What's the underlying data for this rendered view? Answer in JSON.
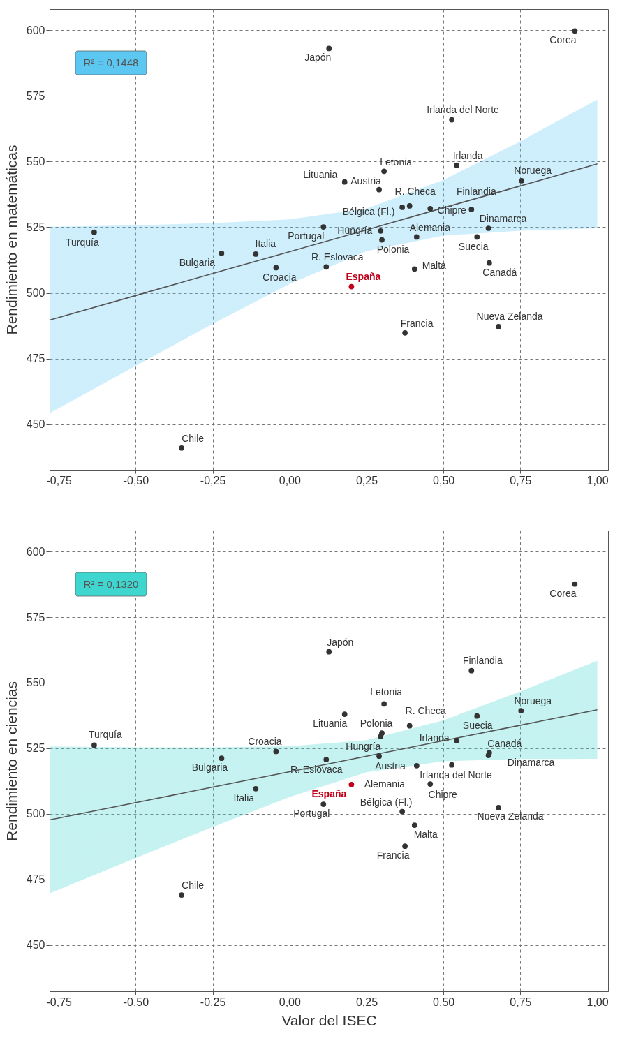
{
  "chart_data": [
    {
      "type": "scatter",
      "ylabel": "Rendimiento en matemáticas",
      "xlim": [
        -0.78,
        1.035
      ],
      "ylim": [
        432.7,
        608
      ],
      "xticks": [
        {
          "value": -0.75,
          "label": "-0,75"
        },
        {
          "value": -0.5,
          "label": "-0,50"
        },
        {
          "value": -0.25,
          "label": "-0,25"
        },
        {
          "value": 0,
          "label": "0,00"
        },
        {
          "value": 0.25,
          "label": "0,25"
        },
        {
          "value": 0.5,
          "label": "0,50"
        },
        {
          "value": 0.75,
          "label": "0,75"
        },
        {
          "value": 1,
          "label": "1,00"
        }
      ],
      "yticks": [
        450,
        475,
        500,
        525,
        550,
        575,
        600
      ],
      "grid": true,
      "series": [
        {
          "type": "line",
          "color": "#555555",
          "colors": [
            "#5cc8f2",
            "#5cc8f2",
            "#5cc8f2",
            "#5cc8f2",
            "#5cc8f2",
            "#5cc8f2",
            "#5cc8f2",
            "#5cc8f2"
          ],
          "x": [
            -0.78,
            -0.5,
            -0.25,
            0,
            0.25,
            0.5,
            0.75,
            1.0
          ],
          "values": [
            489.7,
            499.0,
            507.4,
            515.7,
            524.0,
            532.4,
            540.7,
            549.1
          ],
          "lower": [
            454.2,
            472.3,
            488.2,
            503.4,
            515.9,
            521.8,
            523.7,
            524.6
          ],
          "upper": [
            525.2,
            525.7,
            526.6,
            528.0,
            532.1,
            543.0,
            557.7,
            573.6
          ]
        },
        {
          "type": "scatter",
          "marker": "circle",
          "color": "#333333",
          "x": [
            0.927,
            0.128,
            0.527,
            0.543,
            0.754,
            0.307,
            0.179,
            0.291,
            0.39,
            0.366,
            0.457,
            0.591,
            0.646,
            -0.635,
            0.11,
            0.296,
            0.413,
            0.3,
            0.609,
            -0.221,
            -0.11,
            -0.044,
            0.119,
            0.406,
            0.649,
            0.201,
            0.375,
            0.679,
            -0.351
          ],
          "values": [
            599.7,
            593.0,
            565.9,
            548.6,
            542.7,
            546.3,
            542.2,
            539.3,
            533.1,
            532.6,
            532.1,
            531.8,
            524.6,
            523.1,
            525.1,
            523.6,
            521.3,
            520.2,
            521.3,
            515.1,
            514.8,
            509.6,
            509.9,
            509.1,
            511.4,
            502.4,
            484.8,
            487.2,
            441.0
          ],
          "colors": [
            "#333333",
            "#333333",
            "#333333",
            "#333333",
            "#333333",
            "#333333",
            "#333333",
            "#333333",
            "#333333",
            "#333333",
            "#333333",
            "#333333",
            "#333333",
            "#333333",
            "#333333",
            "#333333",
            "#333333",
            "#333333",
            "#333333",
            "#333333",
            "#333333",
            "#333333",
            "#333333",
            "#333333",
            "#333333",
            "#c0001a",
            "#333333",
            "#333333",
            "#333333"
          ]
        }
      ],
      "annotations": [
        "R² = 0,1448",
        {
          "text": "Corea",
          "x": 0.927,
          "y": 599.7
        },
        {
          "text": "Japón",
          "x": 0.128,
          "y": 593.0
        },
        {
          "text": "Irlanda del Norte",
          "x": 0.527,
          "y": 565.9
        },
        {
          "text": "Irlanda",
          "x": 0.543,
          "y": 548.6
        },
        {
          "text": "Noruega",
          "x": 0.754,
          "y": 542.7
        },
        {
          "text": "Letonia",
          "x": 0.307,
          "y": 546.3
        },
        {
          "text": "Lituania",
          "x": 0.179,
          "y": 542.2
        },
        {
          "text": "Austria",
          "x": 0.291,
          "y": 539.3
        },
        {
          "text": "R. Checa",
          "x": 0.39,
          "y": 533.1
        },
        {
          "text": "Bélgica (Fl.)",
          "x": 0.366,
          "y": 532.6
        },
        {
          "text": "Chipre",
          "x": 0.457,
          "y": 532.1
        },
        {
          "text": "Finlandia",
          "x": 0.591,
          "y": 531.8
        },
        {
          "text": "Dinamarca",
          "x": 0.646,
          "y": 524.6
        },
        {
          "text": "Turquía",
          "x": -0.635,
          "y": 523.1
        },
        {
          "text": "Portugal",
          "x": 0.11,
          "y": 525.1
        },
        {
          "text": "Hungría",
          "x": 0.296,
          "y": 523.6
        },
        {
          "text": "Alemania",
          "x": 0.413,
          "y": 521.3
        },
        {
          "text": "Polonia",
          "x": 0.3,
          "y": 520.2
        },
        {
          "text": "Suecia",
          "x": 0.609,
          "y": 521.3
        },
        {
          "text": "Bulgaria",
          "x": -0.221,
          "y": 515.1
        },
        {
          "text": "Italia",
          "x": -0.11,
          "y": 514.8
        },
        {
          "text": "Croacia",
          "x": -0.044,
          "y": 509.6
        },
        {
          "text": "R. Eslovaca",
          "x": 0.119,
          "y": 509.9
        },
        {
          "text": "Malta",
          "x": 0.406,
          "y": 509.1
        },
        {
          "text": "Canadá",
          "x": 0.649,
          "y": 511.4
        },
        {
          "text": "España",
          "x": 0.201,
          "y": 502.4
        },
        {
          "text": "Francia",
          "x": 0.375,
          "y": 484.8
        },
        {
          "text": "Nueva Zelanda",
          "x": 0.679,
          "y": 487.2
        },
        {
          "text": "Chile",
          "x": -0.351,
          "y": 441.0
        }
      ]
    },
    {
      "type": "scatter",
      "xlabel": "Valor del ISEC",
      "ylabel": "Rendimiento en ciencias",
      "xlim": [
        -0.78,
        1.035
      ],
      "ylim": [
        432.4,
        608
      ],
      "xticks": [
        {
          "value": -0.75,
          "label": "-0,75"
        },
        {
          "value": -0.5,
          "label": "-0,50"
        },
        {
          "value": -0.25,
          "label": "-0,25"
        },
        {
          "value": 0,
          "label": "0,00"
        },
        {
          "value": 0.25,
          "label": "0,25"
        },
        {
          "value": 0.5,
          "label": "0,50"
        },
        {
          "value": 0.75,
          "label": "0,75"
        },
        {
          "value": 1,
          "label": "1,00"
        }
      ],
      "yticks": [
        450,
        475,
        500,
        525,
        550,
        575,
        600
      ],
      "grid": true,
      "series": [
        {
          "type": "line",
          "color": "#555555",
          "colors": [
            "#3fd6d0",
            "#3fd6d0",
            "#3fd6d0",
            "#3fd6d0",
            "#3fd6d0",
            "#3fd6d0",
            "#3fd6d0",
            "#3fd6d0"
          ],
          "x": [
            -0.78,
            -0.5,
            -0.25,
            0,
            0.25,
            0.5,
            0.75,
            1.0
          ],
          "values": [
            497.7,
            504.3,
            510.2,
            516.1,
            522.0,
            527.9,
            533.8,
            539.7
          ],
          "lower": [
            469.7,
            483.2,
            495.0,
            506.4,
            515.9,
            520.1,
            520.9,
            521.0
          ],
          "upper": [
            525.7,
            525.4,
            525.4,
            525.8,
            528.1,
            535.7,
            546.7,
            558.4
          ]
        },
        {
          "type": "scatter",
          "marker": "circle",
          "color": "#333333",
          "x": [
            0.927,
            0.128,
            0.591,
            0.307,
            0.179,
            0.752,
            0.609,
            0.39,
            0.3,
            0.296,
            0.291,
            0.543,
            0.649,
            0.646,
            0.119,
            0.413,
            0.527,
            0.201,
            0.457,
            0.11,
            0.366,
            0.679,
            0.406,
            0.375,
            -0.635,
            -0.221,
            -0.044,
            -0.11,
            -0.351
          ],
          "values": [
            587.6,
            561.8,
            554.6,
            541.9,
            538.0,
            539.3,
            537.3,
            533.6,
            530.8,
            529.5,
            522.0,
            528.0,
            523.3,
            522.3,
            520.7,
            518.4,
            518.7,
            511.2,
            511.4,
            503.7,
            500.9,
            502.4,
            495.7,
            487.7,
            526.2,
            521.2,
            523.8,
            509.6,
            469.1
          ],
          "colors": [
            "#333333",
            "#333333",
            "#333333",
            "#333333",
            "#333333",
            "#333333",
            "#333333",
            "#333333",
            "#333333",
            "#333333",
            "#333333",
            "#333333",
            "#333333",
            "#333333",
            "#333333",
            "#333333",
            "#333333",
            "#c0001a",
            "#333333",
            "#333333",
            "#333333",
            "#333333",
            "#333333",
            "#333333",
            "#333333",
            "#333333",
            "#333333",
            "#333333",
            "#333333"
          ]
        }
      ],
      "annotations": [
        "R² = 0,1320",
        {
          "text": "Corea",
          "x": 0.927,
          "y": 587.6
        },
        {
          "text": "Japón",
          "x": 0.128,
          "y": 561.8
        },
        {
          "text": "Finlandia",
          "x": 0.591,
          "y": 554.6
        },
        {
          "text": "Letonia",
          "x": 0.307,
          "y": 541.9
        },
        {
          "text": "Lituania",
          "x": 0.179,
          "y": 538.0
        },
        {
          "text": "Noruega",
          "x": 0.752,
          "y": 539.3
        },
        {
          "text": "Suecia",
          "x": 0.609,
          "y": 537.3
        },
        {
          "text": "R. Checa",
          "x": 0.39,
          "y": 533.6
        },
        {
          "text": "Polonia",
          "x": 0.3,
          "y": 530.8
        },
        {
          "text": "Hungría",
          "x": 0.296,
          "y": 529.5
        },
        {
          "text": "Austria",
          "x": 0.291,
          "y": 522.0
        },
        {
          "text": "Irlanda",
          "x": 0.543,
          "y": 528.0
        },
        {
          "text": "Canadá",
          "x": 0.649,
          "y": 523.3
        },
        {
          "text": "Dinamarca",
          "x": 0.646,
          "y": 522.3
        },
        {
          "text": "R. Eslovaca",
          "x": 0.119,
          "y": 520.7
        },
        {
          "text": "Alemania",
          "x": 0.413,
          "y": 518.4
        },
        {
          "text": "Irlanda del Norte",
          "x": 0.527,
          "y": 518.7
        },
        {
          "text": "España",
          "x": 0.201,
          "y": 511.2
        },
        {
          "text": "Chipre",
          "x": 0.457,
          "y": 511.4
        },
        {
          "text": "Portugal",
          "x": 0.11,
          "y": 503.7
        },
        {
          "text": "Bélgica (Fl.)",
          "x": 0.366,
          "y": 500.9
        },
        {
          "text": "Nueva Zelanda",
          "x": 0.679,
          "y": 502.4
        },
        {
          "text": "Malta",
          "x": 0.406,
          "y": 495.7
        },
        {
          "text": "Francia",
          "x": 0.375,
          "y": 487.7
        },
        {
          "text": "Turquía",
          "x": -0.635,
          "y": 526.2
        },
        {
          "text": "Bulgaria",
          "x": -0.221,
          "y": 521.2
        },
        {
          "text": "Croacia",
          "x": -0.044,
          "y": 523.8
        },
        {
          "text": "Italia",
          "x": -0.11,
          "y": 509.6
        },
        {
          "text": "Chile",
          "x": -0.351,
          "y": 469.1
        }
      ]
    }
  ]
}
